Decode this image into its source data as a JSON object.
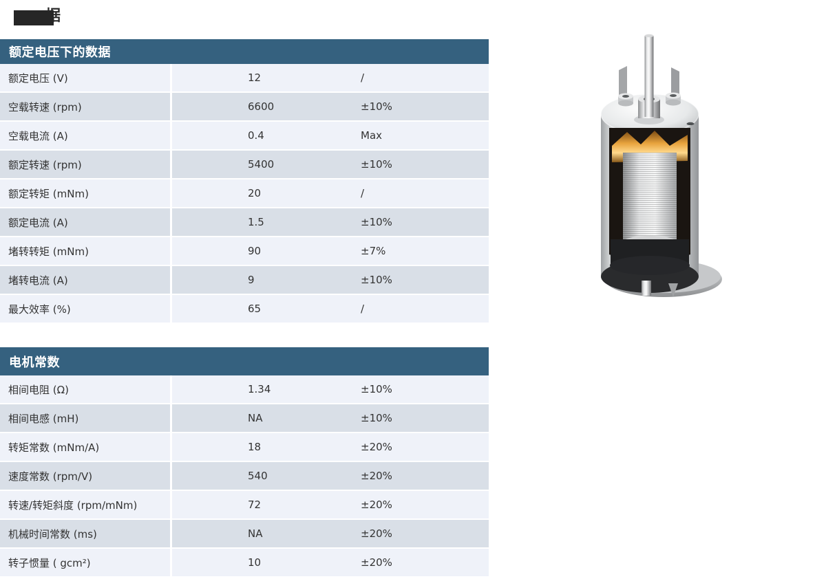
{
  "page_title": {
    "visible_char": "据"
  },
  "theme": {
    "table_header_bg": "#35617F",
    "header_text": "#FFFFFF",
    "row_light": "#EFF2F9",
    "row_dark": "#D9DFE7",
    "divider": "#FFFFFF",
    "text": "#333333",
    "redaction": "#262626"
  },
  "tables": [
    {
      "title": "额定电压下的数据",
      "rows": [
        {
          "label": "额定电压 (V)",
          "value": "12",
          "tolerance": "/"
        },
        {
          "label": "空载转速 (rpm)",
          "value": "6600",
          "tolerance": "±10%"
        },
        {
          "label": "空载电流 (A)",
          "value": "0.4",
          "tolerance": "Max"
        },
        {
          "label": "额定转速 (rpm)",
          "value": "5400",
          "tolerance": "±10%"
        },
        {
          "label": "额定转矩 (mNm)",
          "value": "20",
          "tolerance": "/"
        },
        {
          "label": "额定电流 (A)",
          "value": "1.5",
          "tolerance": "±10%"
        },
        {
          "label": "堵转转矩 (mNm)",
          "value": "90",
          "tolerance": "±7%"
        },
        {
          "label": "堵转电流 (A)",
          "value": "9",
          "tolerance": "±10%"
        },
        {
          "label": "最大效率 (%)",
          "value": "65",
          "tolerance": "/"
        }
      ]
    },
    {
      "title": "电机常数",
      "rows": [
        {
          "label": "相间电阻 (Ω)",
          "value": "1.34",
          "tolerance": "±10%"
        },
        {
          "label": "相间电感 (mH)",
          "value": "NA",
          "tolerance": "±10%"
        },
        {
          "label": "转矩常数 (mNm/A)",
          "value": "18",
          "tolerance": "±20%"
        },
        {
          "label": "速度常数 (rpm/V)",
          "value": "540",
          "tolerance": "±20%"
        },
        {
          "label": "转速/转矩斜度 (rpm/mNm)",
          "value": "72",
          "tolerance": "±20%"
        },
        {
          "label": "机械时间常数 (ms)",
          "value": "NA",
          "tolerance": "±20%"
        },
        {
          "label": "转子惯量 ( gcm²)",
          "value": "10",
          "tolerance": "±20%"
        }
      ]
    }
  ],
  "figure": {
    "description": "DC motor cutaway 3D render"
  }
}
